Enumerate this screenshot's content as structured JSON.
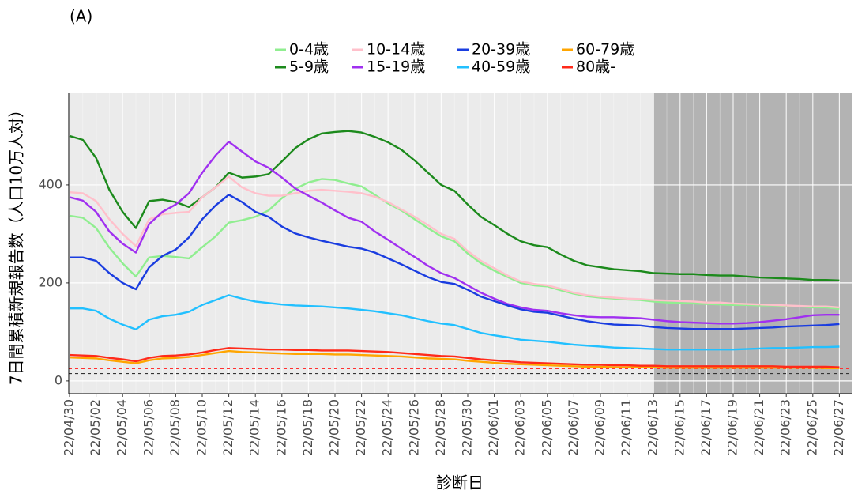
{
  "chart_data": {
    "type": "line",
    "title": "(A)",
    "ylabel": "7日間累積新規報告数（人口10万人対）",
    "xlabel": "診断日",
    "categories": [
      "22/04/30",
      null,
      "22/05/02",
      null,
      "22/05/04",
      null,
      "22/05/06",
      null,
      "22/05/08",
      null,
      "22/05/10",
      null,
      "22/05/12",
      null,
      "22/05/14",
      null,
      "22/05/16",
      null,
      "22/05/18",
      null,
      "22/05/20",
      null,
      "22/05/22",
      null,
      "22/05/24",
      null,
      "22/05/26",
      null,
      "22/05/28",
      null,
      "22/05/30",
      null,
      "22/06/01",
      null,
      "22/06/03",
      null,
      "22/06/05",
      null,
      "22/06/07",
      null,
      "22/06/09",
      null,
      "22/06/11",
      null,
      "22/06/13",
      null,
      "22/06/15",
      null,
      "22/06/17",
      null,
      "22/06/19",
      null,
      "22/06/21",
      null,
      "22/06/23",
      null,
      "22/06/25",
      null,
      "22/06/27"
    ],
    "ylim": [
      -26,
      587
    ],
    "yticks": [
      0,
      200,
      400
    ],
    "grid": true,
    "shaded_from": "22/06/13",
    "hlines": [
      {
        "value": 25,
        "color": "#ff3030"
      },
      {
        "value": 15,
        "color": "#333333"
      }
    ],
    "series": [
      {
        "name": "0-4歳",
        "color": "#90ee90",
        "values": [
          337,
          333,
          312,
          272,
          240,
          213,
          252,
          255,
          253,
          250,
          273,
          295,
          323,
          328,
          335,
          348,
          373,
          392,
          405,
          412,
          410,
          403,
          397,
          380,
          362,
          348,
          330,
          312,
          295,
          285,
          260,
          240,
          225,
          212,
          200,
          195,
          193,
          185,
          178,
          173,
          170,
          168,
          166,
          165,
          162,
          160,
          159,
          158,
          157,
          156,
          155,
          155,
          154,
          154,
          153,
          152,
          150,
          150,
          147
        ]
      },
      {
        "name": "5-9歳",
        "color": "#1c8a1c",
        "values": [
          500,
          492,
          455,
          390,
          345,
          312,
          367,
          370,
          365,
          355,
          375,
          395,
          425,
          415,
          417,
          422,
          448,
          475,
          493,
          505,
          508,
          510,
          507,
          498,
          487,
          472,
          450,
          425,
          400,
          388,
          360,
          335,
          318,
          300,
          285,
          277,
          273,
          258,
          245,
          236,
          232,
          228,
          226,
          224,
          220,
          219,
          218,
          218,
          216,
          215,
          215,
          213,
          211,
          210,
          209,
          208,
          206,
          206,
          205
        ]
      },
      {
        "name": "10-14歳",
        "color": "#ffc0cb",
        "values": [
          385,
          383,
          367,
          330,
          300,
          275,
          330,
          340,
          343,
          345,
          375,
          395,
          417,
          395,
          383,
          378,
          378,
          383,
          388,
          390,
          388,
          386,
          383,
          376,
          365,
          350,
          335,
          318,
          300,
          290,
          265,
          245,
          230,
          215,
          203,
          198,
          195,
          188,
          180,
          175,
          172,
          170,
          168,
          167,
          165,
          164,
          163,
          162,
          160,
          160,
          158,
          157,
          156,
          155,
          154,
          153,
          152,
          152,
          150
        ]
      },
      {
        "name": "15-19歳",
        "color": "#a030f0",
        "values": [
          375,
          368,
          345,
          305,
          280,
          262,
          320,
          345,
          360,
          383,
          425,
          460,
          488,
          468,
          448,
          435,
          415,
          393,
          378,
          364,
          348,
          333,
          325,
          305,
          288,
          270,
          253,
          235,
          220,
          210,
          195,
          180,
          168,
          157,
          150,
          145,
          143,
          138,
          134,
          131,
          130,
          130,
          129,
          128,
          125,
          122,
          120,
          119,
          118,
          117,
          117,
          118,
          120,
          123,
          126,
          130,
          134,
          135,
          135
        ]
      },
      {
        "name": "20-39歳",
        "color": "#1a3de0",
        "values": [
          252,
          252,
          245,
          220,
          200,
          187,
          232,
          255,
          268,
          293,
          330,
          358,
          380,
          365,
          345,
          335,
          315,
          301,
          293,
          286,
          280,
          274,
          270,
          262,
          250,
          238,
          225,
          212,
          202,
          198,
          186,
          172,
          163,
          154,
          146,
          141,
          139,
          133,
          127,
          122,
          118,
          115,
          114,
          113,
          110,
          108,
          107,
          106,
          106,
          106,
          106,
          107,
          108,
          109,
          111,
          112,
          113,
          114,
          116
        ]
      },
      {
        "name": "40-59歳",
        "color": "#22c0ff",
        "values": [
          148,
          148,
          143,
          127,
          115,
          105,
          125,
          132,
          135,
          141,
          155,
          165,
          175,
          168,
          162,
          159,
          156,
          154,
          153,
          152,
          150,
          148,
          145,
          142,
          138,
          134,
          128,
          122,
          117,
          114,
          106,
          98,
          93,
          89,
          84,
          82,
          80,
          77,
          74,
          72,
          70,
          68,
          67,
          66,
          65,
          64,
          64,
          64,
          64,
          64,
          64,
          65,
          66,
          67,
          67,
          68,
          69,
          69,
          70
        ]
      },
      {
        "name": "60-79歳",
        "color": "#ffa500",
        "values": [
          48,
          47,
          46,
          42,
          39,
          36,
          42,
          46,
          47,
          49,
          53,
          57,
          61,
          59,
          58,
          57,
          56,
          55,
          55,
          55,
          54,
          54,
          53,
          52,
          51,
          50,
          48,
          46,
          45,
          44,
          41,
          39,
          37,
          35,
          34,
          33,
          32,
          31,
          30,
          29,
          29,
          28,
          28,
          28,
          28,
          27,
          27,
          27,
          27,
          27,
          27,
          27,
          27,
          27,
          27,
          27,
          27,
          26,
          26
        ]
      },
      {
        "name": "80歳-",
        "color": "#ff2a1a",
        "values": [
          53,
          52,
          51,
          47,
          44,
          40,
          47,
          51,
          52,
          54,
          58,
          63,
          67,
          66,
          65,
          64,
          64,
          63,
          63,
          62,
          62,
          62,
          61,
          60,
          59,
          57,
          55,
          53,
          51,
          50,
          47,
          44,
          42,
          40,
          38,
          37,
          36,
          35,
          34,
          33,
          33,
          32,
          32,
          31,
          31,
          30,
          30,
          30,
          30,
          30,
          30,
          30,
          30,
          30,
          29,
          29,
          29,
          29,
          28
        ]
      }
    ]
  }
}
